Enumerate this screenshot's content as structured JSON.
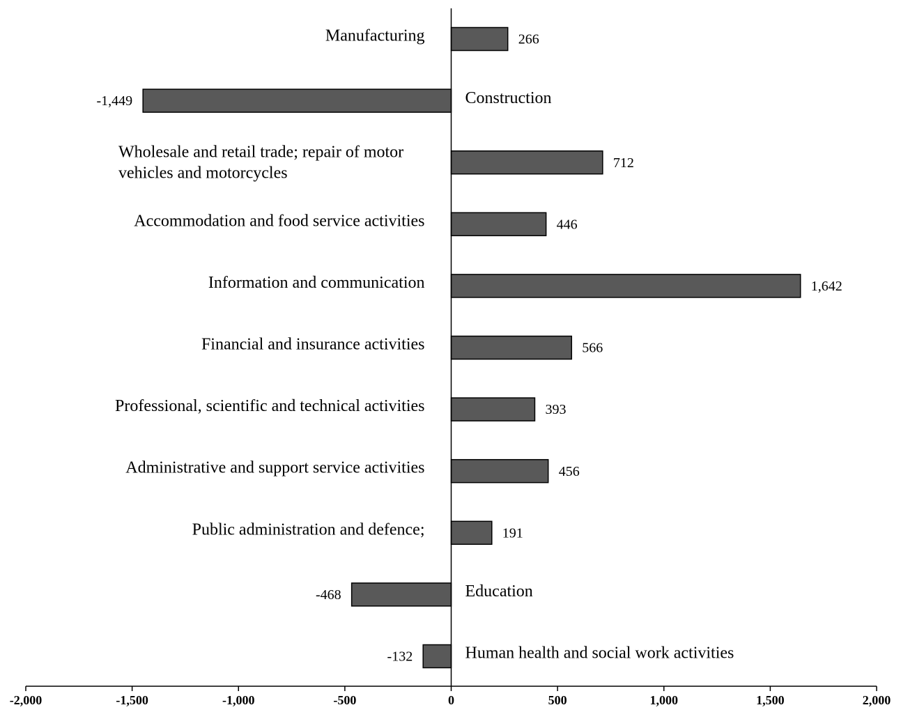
{
  "chart_data": {
    "type": "bar",
    "orientation": "horizontal",
    "categories": [
      "Manufacturing",
      "Construction",
      "Wholesale and retail trade; repair of motor vehicles and motorcycles",
      "Accommodation and food service activities",
      "Information  and communication",
      "Financial  and insurance activities",
      "Professional, scientific and technical activities",
      "Administrative  and support service activities",
      "Public administration  and defence;",
      "Education",
      "Human health and social work activities"
    ],
    "category_label_lines": [
      [
        "Manufacturing"
      ],
      [
        "Construction"
      ],
      [
        "Wholesale and retail trade; repair of motor",
        "vehicles and motorcycles"
      ],
      [
        "Accommodation and food service activities"
      ],
      [
        "Information  and communication"
      ],
      [
        "Financial  and insurance activities"
      ],
      [
        "Professional, scientific and technical activities"
      ],
      [
        "Administrative  and support service activities"
      ],
      [
        "Public administration  and defence;"
      ],
      [
        "Education"
      ],
      [
        "Human health and social work activities"
      ]
    ],
    "values": [
      266,
      -1449,
      712,
      446,
      1642,
      566,
      393,
      456,
      191,
      -468,
      -132
    ],
    "value_labels": [
      "266",
      "-1,449",
      "712",
      "446",
      "1,642",
      "566",
      "393",
      "456",
      "191",
      "-468",
      "-132"
    ],
    "xlim": [
      -2000,
      2000
    ],
    "x_ticks": [
      -2000,
      -1500,
      -1000,
      -500,
      0,
      500,
      1000,
      1500,
      2000
    ],
    "x_tick_labels": [
      "-2,000",
      "-1,500",
      "-1,000",
      "-500",
      "0",
      "500",
      "1,000",
      "1,500",
      "2,000"
    ],
    "title": "",
    "xlabel": "",
    "ylabel": "",
    "grid": false,
    "legend": "none",
    "bar_color": "#595959",
    "bar_edge_color": "#000000"
  }
}
